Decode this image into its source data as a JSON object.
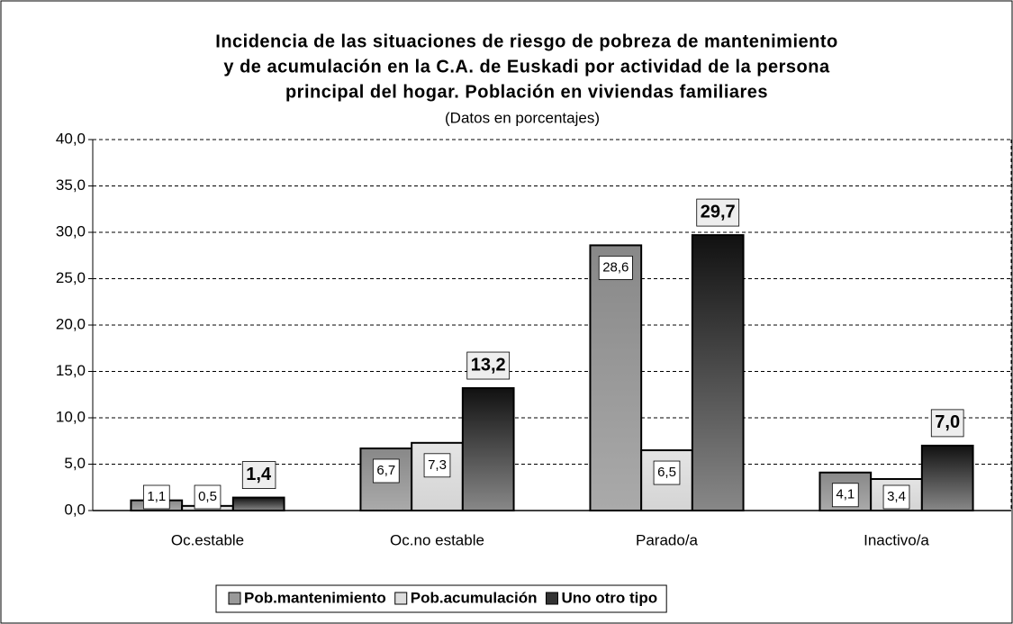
{
  "chart_data": {
    "type": "bar",
    "title": [
      "Incidencia de las situaciones de riesgo de pobreza de mantenimiento",
      "y de acumulación en la C.A. de Euskadi por actividad de la persona",
      "principal del hogar. Población en viviendas familiares"
    ],
    "subtitle": "(Datos en porcentajes)",
    "categories": [
      "Oc.estable",
      "Oc.no estable",
      "Parado/a",
      "Inactivo/a"
    ],
    "series": [
      {
        "name": "Pob.mantenimiento",
        "color": "#999999",
        "values": [
          1.1,
          6.7,
          28.6,
          4.1
        ],
        "value_labels": [
          "1,1",
          "6,7",
          "28,6",
          "4,1"
        ]
      },
      {
        "name": "Pob.acumulación",
        "color": "#dddddd",
        "values": [
          0.5,
          7.3,
          6.5,
          3.4
        ],
        "value_labels": [
          "0,5",
          "7,3",
          "6,5",
          "3,4"
        ]
      },
      {
        "name": "Uno otro tipo",
        "color": "#333333",
        "values": [
          1.4,
          13.2,
          29.7,
          7.0
        ],
        "value_labels": [
          "1,4",
          "13,2",
          "29,7",
          "7,0"
        ]
      }
    ],
    "ylim": [
      0,
      40
    ],
    "yticks": [
      {
        "value": 0,
        "label": "0,0"
      },
      {
        "value": 5,
        "label": "5,0"
      },
      {
        "value": 10,
        "label": "10,0"
      },
      {
        "value": 15,
        "label": "15,0"
      },
      {
        "value": 20,
        "label": "20,0"
      },
      {
        "value": 25,
        "label": "25,0"
      },
      {
        "value": 30,
        "label": "30,0"
      },
      {
        "value": 35,
        "label": "35,0"
      },
      {
        "value": 40,
        "label": "40,0"
      }
    ],
    "grid": true,
    "legend": "bottom"
  }
}
